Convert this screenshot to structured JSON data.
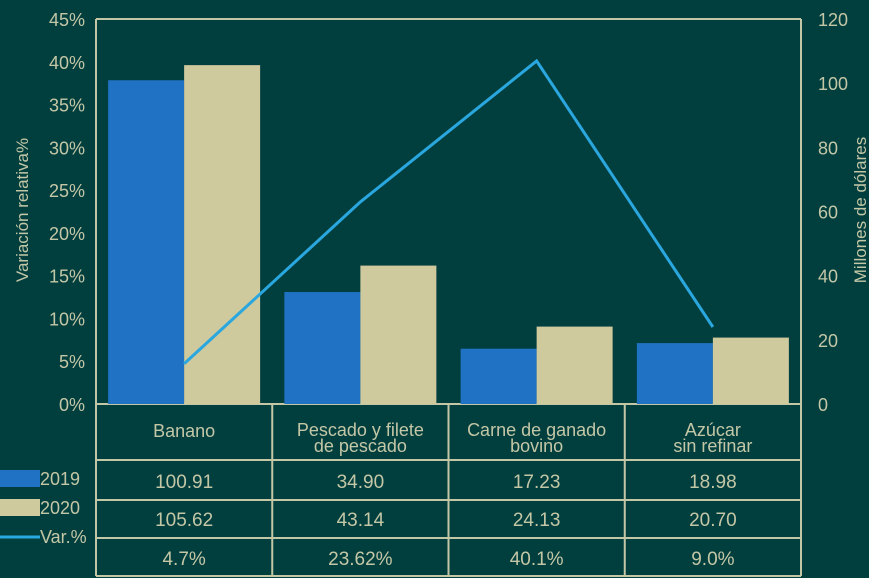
{
  "chart_data": {
    "type": "bar",
    "categories": [
      [
        "Banano"
      ],
      [
        "Pescado y filete",
        "de pescado"
      ],
      [
        "Carne de ganado",
        "bovino"
      ],
      [
        "Azúcar",
        "sin refinar"
      ]
    ],
    "series": [
      {
        "name": "2019",
        "type": "bar",
        "axis": "right",
        "values": [
          100.91,
          34.9,
          17.23,
          18.98
        ],
        "color": "#1f72c4"
      },
      {
        "name": "2020",
        "type": "bar",
        "axis": "right",
        "values": [
          105.62,
          43.14,
          24.13,
          20.7
        ],
        "color": "#cfc99e"
      },
      {
        "name": "Var.%",
        "type": "line",
        "axis": "left",
        "values": [
          4.7,
          23.62,
          40.1,
          9.0
        ],
        "color": "#2aa7de"
      }
    ],
    "table_rows": [
      {
        "label": "2019",
        "cells": [
          "100.91",
          "34.90",
          "17.23",
          "18.98"
        ]
      },
      {
        "label": "2020",
        "cells": [
          "105.62",
          "43.14",
          "24.13",
          "20.70"
        ]
      },
      {
        "label": "Var.%",
        "cells": [
          "4.7%",
          "23.62%",
          "40.1%",
          "9.0%"
        ]
      }
    ],
    "left_axis": {
      "label": "Variación relativa%",
      "ticks": [
        "0%",
        "5%",
        "10%",
        "15%",
        "20%",
        "25%",
        "30%",
        "35%",
        "40%",
        "45%"
      ],
      "range": [
        0,
        45
      ]
    },
    "right_axis": {
      "label": "Millones de dólares",
      "ticks": [
        "0",
        "20",
        "40",
        "60",
        "80",
        "100",
        "120"
      ],
      "range": [
        0,
        120
      ]
    },
    "grid": false,
    "legend": "bottom-left, in data table",
    "colors": {
      "background": "#013f3f",
      "text": "#c4c7a6",
      "axis": "#c4c7a6"
    }
  }
}
